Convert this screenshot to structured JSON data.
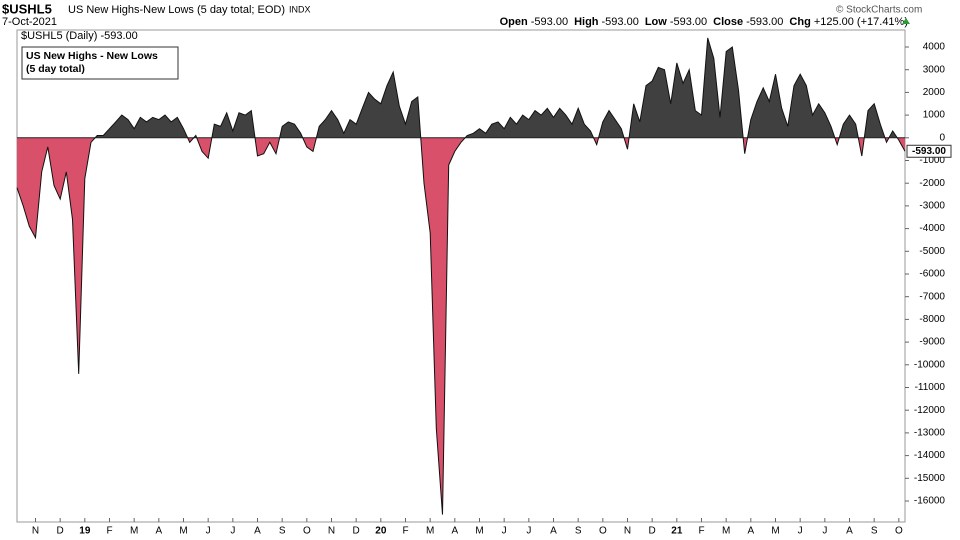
{
  "chart_data": {
    "type": "area",
    "symbol": "$USHL5",
    "title": "US New Highs-New Lows (5 day total; EOD)",
    "exchange": "INDX",
    "date": "7-Oct-2021",
    "quote": [
      {
        "label": "Open",
        "value": "-593.00"
      },
      {
        "label": "High",
        "value": "-593.00"
      },
      {
        "label": "Low",
        "value": "-593.00"
      },
      {
        "label": "Close",
        "value": "-593.00"
      },
      {
        "label": "Chg",
        "value": "+125.00 (+17.41%)"
      }
    ],
    "legend": "$USHL5 (Daily) -593.00",
    "annotation": [
      "US New Highs - New Lows",
      "(5 day total)"
    ],
    "watermark": "© StockCharts.com",
    "last_value": {
      "value": -593,
      "label": "-593.00"
    },
    "positive_color": "#404040",
    "negative_color": "#d9506a",
    "ylim": [
      4000,
      -16000
    ],
    "yticks": [
      4000,
      3000,
      2000,
      1000,
      0,
      -1000,
      -2000,
      -3000,
      -4000,
      -5000,
      -6000,
      -7000,
      -8000,
      -9000,
      -10000,
      -11000,
      -12000,
      -13000,
      -14000,
      -15000,
      -16000
    ],
    "categories": [
      null,
      null,
      null,
      "N",
      null,
      null,
      null,
      "D",
      null,
      null,
      null,
      "19",
      null,
      null,
      null,
      "F",
      null,
      null,
      null,
      "M",
      null,
      null,
      null,
      "A",
      null,
      null,
      null,
      "M",
      null,
      null,
      null,
      "J",
      null,
      null,
      null,
      "J",
      null,
      null,
      null,
      "A",
      null,
      null,
      null,
      "S",
      null,
      null,
      null,
      "O",
      null,
      null,
      null,
      "N",
      null,
      null,
      null,
      "D",
      null,
      null,
      null,
      "20",
      null,
      null,
      null,
      "F",
      null,
      null,
      null,
      "M",
      null,
      null,
      null,
      "A",
      null,
      null,
      null,
      "M",
      null,
      null,
      null,
      "J",
      null,
      null,
      null,
      "J",
      null,
      null,
      null,
      "A",
      null,
      null,
      null,
      "S",
      null,
      null,
      null,
      "O",
      null,
      null,
      null,
      "N",
      null,
      null,
      null,
      "D",
      null,
      null,
      null,
      "21",
      null,
      null,
      null,
      "F",
      null,
      null,
      null,
      "M",
      null,
      null,
      null,
      "A",
      null,
      null,
      null,
      "M",
      null,
      null,
      null,
      "J",
      null,
      null,
      null,
      "J",
      null,
      null,
      null,
      "A",
      null,
      null,
      null,
      "S",
      null,
      null,
      null,
      "O",
      null
    ],
    "values": [
      -2200,
      -3000,
      -3900,
      -4400,
      -1500,
      -400,
      -2100,
      -2700,
      -1500,
      -3600,
      -10400,
      -1800,
      -200,
      100,
      100,
      400,
      700,
      1000,
      800,
      400,
      900,
      700,
      900,
      800,
      1000,
      700,
      900,
      400,
      -200,
      100,
      -600,
      -900,
      600,
      500,
      1100,
      300,
      1100,
      1000,
      1200,
      -800,
      -700,
      -200,
      -700,
      500,
      700,
      600,
      200,
      -400,
      -600,
      500,
      800,
      1200,
      800,
      200,
      800,
      600,
      1300,
      2000,
      1700,
      1500,
      2300,
      2900,
      1400,
      600,
      1600,
      1800,
      -2000,
      -4200,
      -12800,
      -16600,
      -1200,
      -600,
      -200,
      100,
      200,
      400,
      200,
      600,
      700,
      400,
      900,
      600,
      1000,
      800,
      1200,
      1000,
      1300,
      900,
      1300,
      1000,
      600,
      1300,
      600,
      300,
      -300,
      700,
      1200,
      800,
      400,
      -500,
      1500,
      700,
      2300,
      2500,
      3100,
      3000,
      1500,
      3300,
      2400,
      3000,
      1200,
      1000,
      4400,
      3500,
      900,
      3800,
      4000,
      2100,
      -700,
      800,
      1600,
      2200,
      1600,
      2800,
      1300,
      500,
      2300,
      2800,
      2300,
      1000,
      1500,
      1100,
      500,
      -300,
      600,
      1000,
      600,
      -800,
      1200,
      1500,
      600,
      -200,
      300,
      -100,
      -593
    ]
  }
}
